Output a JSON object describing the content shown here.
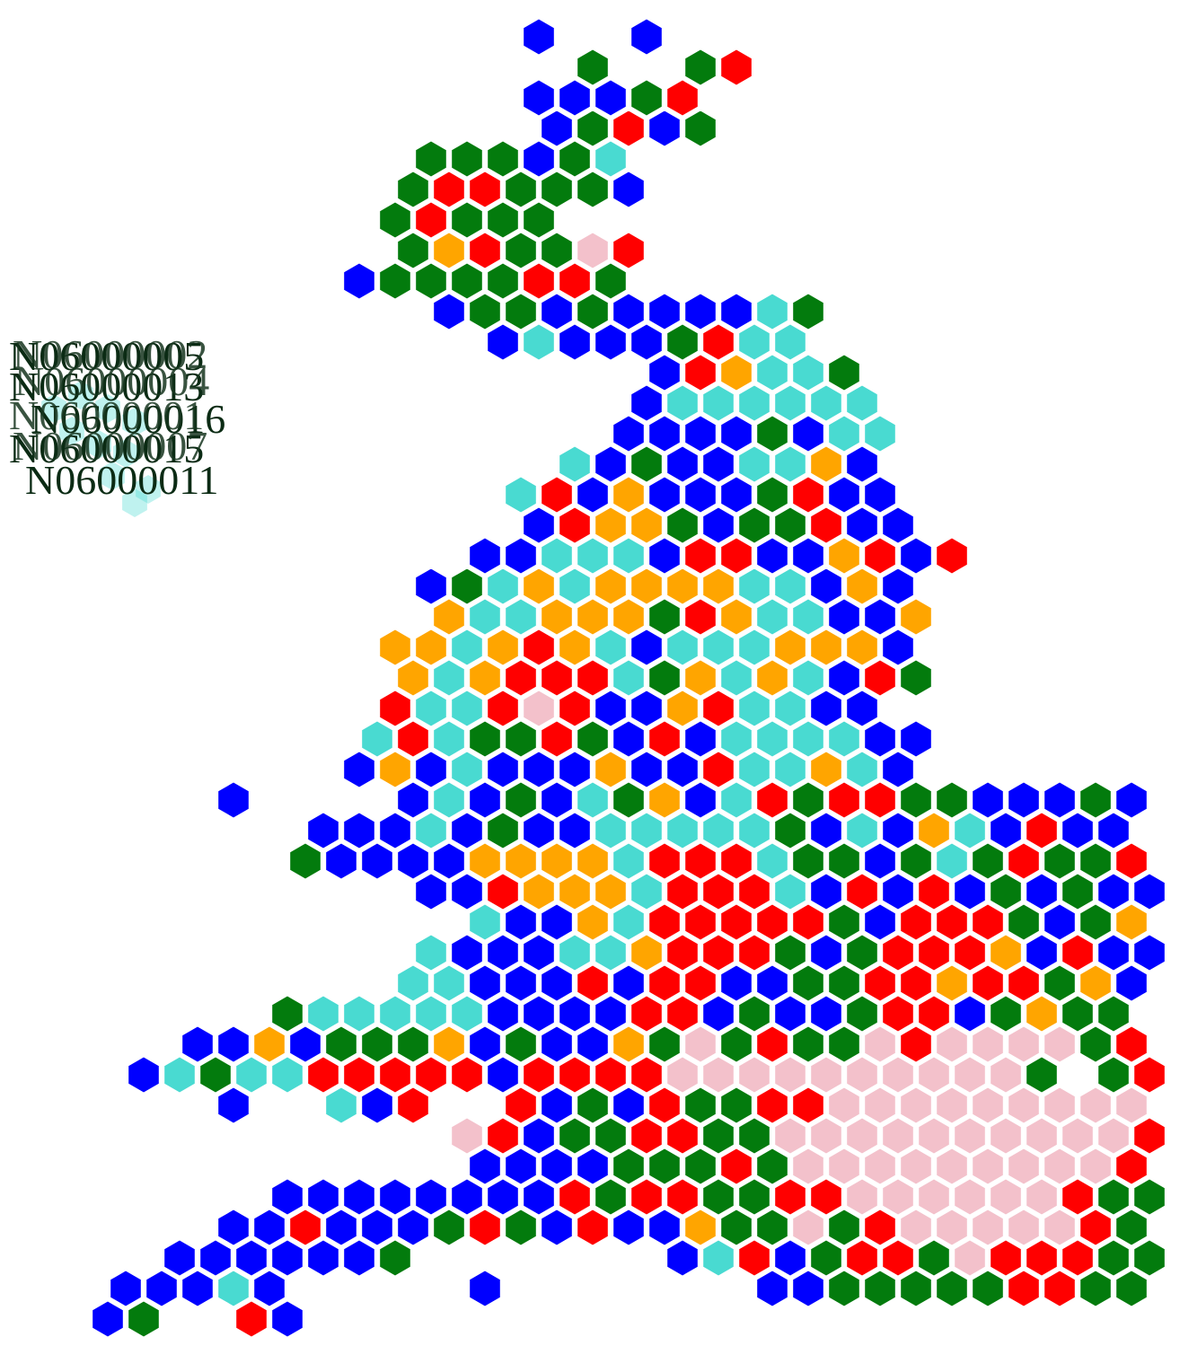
{
  "colors": {
    "blue": "#0000ff",
    "green": "#037b0d",
    "red": "#ff0000",
    "turquoise": "#49dad1",
    "orange": "#ffa500",
    "pink": "#f3c1cb",
    "label_text": "#0b2b14"
  },
  "legend_key": {
    "B": "blue",
    "G": "green",
    "R": "red",
    "T": "turquoise",
    "O": "orange",
    "P": "pink"
  },
  "hex_rows": [
    "...............B..B..",
    "................G..GR",
    "...............BBBGR",
    "...............BGRBG",
    "............GGGBGT",
    "...........GRRGGGB",
    "...........GRGGG",
    "...........GORGGPR",
    "..........BGGGGRRG",
    "............BGGBGBBBBTG",
    "..............BTBBBGRTT",
    "..................BROTTG",
    "..................BTTTTTT",
    ".................BBBBGBTT",
    "................TBGBBTTOB",
    "..............TRBOBBBGRBB",
    "...............BROOGBGGRBB",
    ".............BBTTTBRRBBORBR",
    "............BGTOTOOOOTTBOB",
    "............OTTOOOGROTTBBO",
    "...........OOTOROTBTTTOOOB",
    "...........OTORRRTGOTOTBRG",
    "...........RTTRPRBBORTTBB",
    "..........TRTGGRGBRBTTTTBB",
    "..........BOBTBBBOBBRTTOTB",
    "......B....BTBGBTGOBTRGRRGGBBBGBB",
    ".........BBBTBGBBTTTTTGBTBOTBRBB",
    "........GBBBBOOOOTRRRTGGBGTGRGGRB",
    "............BBROOOTRRRTBRBRBGBGBBB",
    ".............TBBOTRRRRRGBRRRGBGORG",
    "............TBBBTTORRRGBGRRROBRBB",
    "...........TTBBBRBRRBBGGRRORRGOBO",
    "........GTTTTTBBBBRRBGBBGRRBGOGG",
    ".....BBOBGGGOBGBBOGPGRGGPRPPPPGRRO.B",
    "....BTGTTRRRRRBRRRRPPPPPPPPPPG.GR",
    "......B..TBR..RBGBRGGRRPPPPPPPPPR",
    ".............PRBGGRRGGPPPPPPPPPPROOTB",
    ".............BBBBGGGRGPPPPPPPPPRROOB.B",
    "........BBBBBBBBRGRRGGRRPPPPPPRGGGGGB",
    "......BBRBBBGRGBRBBOGGPGRPPPPPRGGGBG",
    ".....BBBBBBG.......BTRBGRRGPRRRGGGBGB",
    "...BBBTB.....B.......BBGGGGGRRGGBGGB",
    "...BG..RB"
  ],
  "ni_labels": [
    "N06000005",
    "N06000002",
    "N06000013",
    "N06000004",
    "N06000016",
    "N06000001",
    "N06000015",
    "N06000007",
    "N06000011"
  ]
}
